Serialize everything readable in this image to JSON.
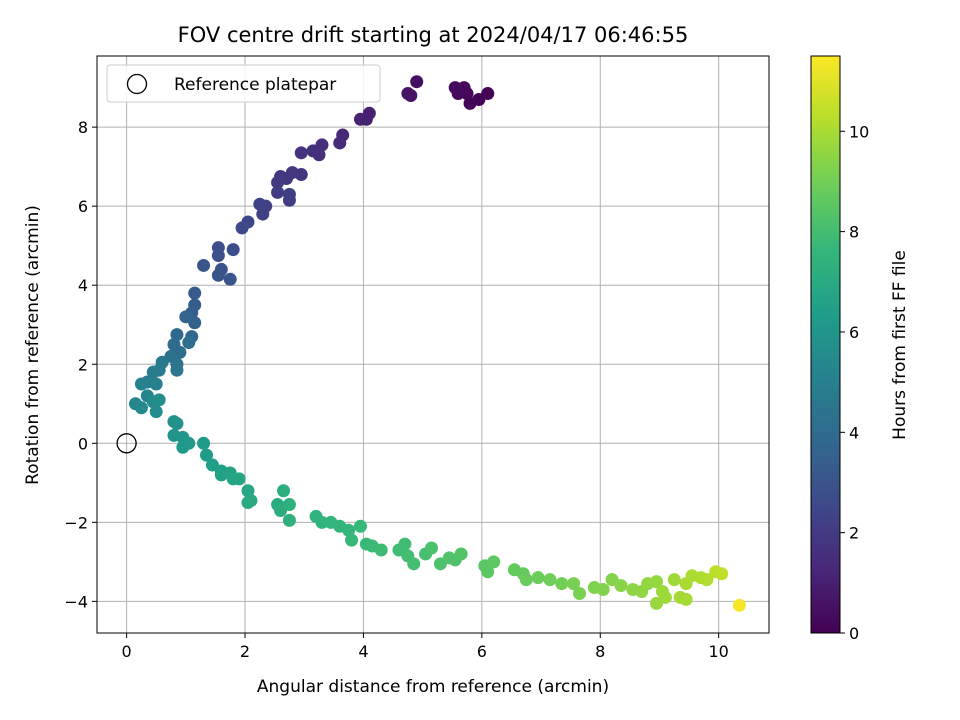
{
  "chart_data": {
    "type": "scatter",
    "title": "FOV centre drift starting at 2024/04/17 06:46:55",
    "xlabel": "Angular distance from reference (arcmin)",
    "ylabel": "Rotation from reference (arcmin)",
    "xlim": [
      -0.5,
      10.85
    ],
    "ylim": [
      -4.8,
      9.8
    ],
    "xticks": [
      0,
      2,
      4,
      6,
      8,
      10
    ],
    "yticks": [
      -4,
      -2,
      0,
      2,
      4,
      6,
      8
    ],
    "grid": true,
    "legend": {
      "placement": "top-left",
      "entries": [
        "Reference platepar"
      ]
    },
    "reference_point": {
      "x": 0,
      "y": 0,
      "marker": "open-circle"
    },
    "colorbar": {
      "label": "Hours from first FF file",
      "colormap": "viridis",
      "range": [
        0,
        11.5
      ],
      "ticks": [
        0,
        2,
        4,
        6,
        8,
        10
      ]
    },
    "colormap_stops": [
      "#440154",
      "#482878",
      "#3e4989",
      "#31688e",
      "#26828e",
      "#1f9e89",
      "#35b779",
      "#6ece58",
      "#b5de2b",
      "#fde725"
    ],
    "points": [
      {
        "x": 6.1,
        "y": 8.85,
        "h": 0.05
      },
      {
        "x": 5.95,
        "y": 8.7,
        "h": 0.1
      },
      {
        "x": 5.8,
        "y": 8.6,
        "h": 0.15
      },
      {
        "x": 5.75,
        "y": 8.85,
        "h": 0.2
      },
      {
        "x": 5.7,
        "y": 9.0,
        "h": 0.25
      },
      {
        "x": 5.6,
        "y": 8.85,
        "h": 0.3
      },
      {
        "x": 5.55,
        "y": 9.0,
        "h": 0.35
      },
      {
        "x": 4.9,
        "y": 9.15,
        "h": 0.5
      },
      {
        "x": 4.8,
        "y": 8.8,
        "h": 0.6
      },
      {
        "x": 4.75,
        "y": 8.85,
        "h": 0.65
      },
      {
        "x": 4.1,
        "y": 8.35,
        "h": 1.0
      },
      {
        "x": 4.05,
        "y": 8.2,
        "h": 1.05
      },
      {
        "x": 3.95,
        "y": 8.2,
        "h": 1.1
      },
      {
        "x": 3.65,
        "y": 7.8,
        "h": 1.3
      },
      {
        "x": 3.6,
        "y": 7.6,
        "h": 1.35
      },
      {
        "x": 3.3,
        "y": 7.55,
        "h": 1.5
      },
      {
        "x": 3.25,
        "y": 7.3,
        "h": 1.55
      },
      {
        "x": 3.15,
        "y": 7.4,
        "h": 1.6
      },
      {
        "x": 2.95,
        "y": 7.35,
        "h": 1.7
      },
      {
        "x": 2.95,
        "y": 6.8,
        "h": 1.8
      },
      {
        "x": 2.8,
        "y": 6.85,
        "h": 1.85
      },
      {
        "x": 2.7,
        "y": 6.7,
        "h": 1.9
      },
      {
        "x": 2.6,
        "y": 6.75,
        "h": 1.95
      },
      {
        "x": 2.55,
        "y": 6.6,
        "h": 2.0
      },
      {
        "x": 2.55,
        "y": 6.35,
        "h": 2.05
      },
      {
        "x": 2.75,
        "y": 6.15,
        "h": 2.1
      },
      {
        "x": 2.75,
        "y": 6.3,
        "h": 2.15
      },
      {
        "x": 2.35,
        "y": 6.0,
        "h": 2.2
      },
      {
        "x": 2.3,
        "y": 5.8,
        "h": 2.25
      },
      {
        "x": 2.25,
        "y": 6.05,
        "h": 2.3
      },
      {
        "x": 2.05,
        "y": 5.6,
        "h": 2.5
      },
      {
        "x": 1.95,
        "y": 5.45,
        "h": 2.55
      },
      {
        "x": 1.8,
        "y": 4.9,
        "h": 2.75
      },
      {
        "x": 1.55,
        "y": 4.95,
        "h": 2.8
      },
      {
        "x": 1.55,
        "y": 4.75,
        "h": 2.85
      },
      {
        "x": 1.6,
        "y": 4.4,
        "h": 2.95
      },
      {
        "x": 1.55,
        "y": 4.25,
        "h": 3.0
      },
      {
        "x": 1.75,
        "y": 4.15,
        "h": 3.05
      },
      {
        "x": 1.3,
        "y": 4.5,
        "h": 3.1
      },
      {
        "x": 1.15,
        "y": 3.8,
        "h": 3.3
      },
      {
        "x": 1.15,
        "y": 3.5,
        "h": 3.4
      },
      {
        "x": 1.1,
        "y": 3.3,
        "h": 3.5
      },
      {
        "x": 1.15,
        "y": 3.05,
        "h": 3.6
      },
      {
        "x": 1.0,
        "y": 3.2,
        "h": 3.65
      },
      {
        "x": 1.1,
        "y": 2.7,
        "h": 3.8
      },
      {
        "x": 0.85,
        "y": 2.75,
        "h": 3.9
      },
      {
        "x": 0.8,
        "y": 2.5,
        "h": 4.0
      },
      {
        "x": 0.9,
        "y": 2.3,
        "h": 4.1
      },
      {
        "x": 1.05,
        "y": 2.55,
        "h": 4.15
      },
      {
        "x": 0.75,
        "y": 2.2,
        "h": 4.3
      },
      {
        "x": 0.85,
        "y": 2.0,
        "h": 4.4
      },
      {
        "x": 0.85,
        "y": 1.85,
        "h": 4.5
      },
      {
        "x": 0.6,
        "y": 2.05,
        "h": 4.6
      },
      {
        "x": 0.55,
        "y": 1.85,
        "h": 4.7
      },
      {
        "x": 0.45,
        "y": 1.8,
        "h": 4.8
      },
      {
        "x": 0.35,
        "y": 1.55,
        "h": 4.9
      },
      {
        "x": 0.5,
        "y": 1.5,
        "h": 5.0
      },
      {
        "x": 0.25,
        "y": 1.5,
        "h": 5.1
      },
      {
        "x": 0.35,
        "y": 1.2,
        "h": 5.2
      },
      {
        "x": 0.15,
        "y": 1.0,
        "h": 5.3
      },
      {
        "x": 0.25,
        "y": 0.9,
        "h": 5.4
      },
      {
        "x": 0.45,
        "y": 1.05,
        "h": 5.5
      },
      {
        "x": 0.55,
        "y": 1.1,
        "h": 5.55
      },
      {
        "x": 0.5,
        "y": 0.8,
        "h": 5.6
      },
      {
        "x": 0.8,
        "y": 0.55,
        "h": 5.8
      },
      {
        "x": 0.85,
        "y": 0.5,
        "h": 5.85
      },
      {
        "x": 0.8,
        "y": 0.2,
        "h": 5.9
      },
      {
        "x": 0.95,
        "y": 0.15,
        "h": 6.0
      },
      {
        "x": 1.05,
        "y": 0.0,
        "h": 6.1
      },
      {
        "x": 0.95,
        "y": -0.1,
        "h": 6.15
      },
      {
        "x": 1.3,
        "y": 0.0,
        "h": 6.2
      },
      {
        "x": 1.35,
        "y": -0.3,
        "h": 6.3
      },
      {
        "x": 1.45,
        "y": -0.55,
        "h": 6.4
      },
      {
        "x": 1.6,
        "y": -0.7,
        "h": 6.5
      },
      {
        "x": 1.6,
        "y": -0.8,
        "h": 6.55
      },
      {
        "x": 1.75,
        "y": -0.75,
        "h": 6.6
      },
      {
        "x": 1.8,
        "y": -0.9,
        "h": 6.7
      },
      {
        "x": 1.9,
        "y": -0.9,
        "h": 6.75
      },
      {
        "x": 2.05,
        "y": -1.2,
        "h": 6.85
      },
      {
        "x": 2.1,
        "y": -1.45,
        "h": 6.9
      },
      {
        "x": 2.05,
        "y": -1.5,
        "h": 6.95
      },
      {
        "x": 2.55,
        "y": -1.55,
        "h": 7.1
      },
      {
        "x": 2.6,
        "y": -1.7,
        "h": 7.15
      },
      {
        "x": 2.65,
        "y": -1.2,
        "h": 7.2
      },
      {
        "x": 2.75,
        "y": -1.55,
        "h": 7.25
      },
      {
        "x": 2.75,
        "y": -1.95,
        "h": 7.3
      },
      {
        "x": 3.2,
        "y": -1.85,
        "h": 7.4
      },
      {
        "x": 3.3,
        "y": -2.0,
        "h": 7.45
      },
      {
        "x": 3.45,
        "y": -2.0,
        "h": 7.5
      },
      {
        "x": 3.6,
        "y": -2.1,
        "h": 7.55
      },
      {
        "x": 3.75,
        "y": -2.2,
        "h": 7.6
      },
      {
        "x": 3.8,
        "y": -2.45,
        "h": 7.65
      },
      {
        "x": 3.95,
        "y": -2.1,
        "h": 7.7
      },
      {
        "x": 4.05,
        "y": -2.55,
        "h": 7.75
      },
      {
        "x": 4.15,
        "y": -2.6,
        "h": 7.8
      },
      {
        "x": 4.3,
        "y": -2.7,
        "h": 7.85
      },
      {
        "x": 4.6,
        "y": -2.7,
        "h": 7.9
      },
      {
        "x": 4.7,
        "y": -2.55,
        "h": 7.95
      },
      {
        "x": 4.75,
        "y": -2.85,
        "h": 8.0
      },
      {
        "x": 4.85,
        "y": -3.05,
        "h": 8.05
      },
      {
        "x": 5.05,
        "y": -2.8,
        "h": 8.1
      },
      {
        "x": 5.15,
        "y": -2.65,
        "h": 8.15
      },
      {
        "x": 5.3,
        "y": -3.05,
        "h": 8.2
      },
      {
        "x": 5.45,
        "y": -2.9,
        "h": 8.25
      },
      {
        "x": 5.55,
        "y": -2.95,
        "h": 8.3
      },
      {
        "x": 5.65,
        "y": -2.8,
        "h": 8.35
      },
      {
        "x": 6.05,
        "y": -3.1,
        "h": 8.5
      },
      {
        "x": 6.1,
        "y": -3.25,
        "h": 8.55
      },
      {
        "x": 6.2,
        "y": -3.0,
        "h": 8.6
      },
      {
        "x": 6.55,
        "y": -3.2,
        "h": 8.7
      },
      {
        "x": 6.7,
        "y": -3.3,
        "h": 8.75
      },
      {
        "x": 6.75,
        "y": -3.45,
        "h": 8.8
      },
      {
        "x": 6.95,
        "y": -3.4,
        "h": 8.85
      },
      {
        "x": 7.15,
        "y": -3.45,
        "h": 8.95
      },
      {
        "x": 7.35,
        "y": -3.55,
        "h": 9.0
      },
      {
        "x": 7.55,
        "y": -3.55,
        "h": 9.1
      },
      {
        "x": 7.65,
        "y": -3.8,
        "h": 9.15
      },
      {
        "x": 7.9,
        "y": -3.65,
        "h": 9.25
      },
      {
        "x": 8.05,
        "y": -3.7,
        "h": 9.3
      },
      {
        "x": 8.2,
        "y": -3.45,
        "h": 9.35
      },
      {
        "x": 8.35,
        "y": -3.6,
        "h": 9.4
      },
      {
        "x": 8.55,
        "y": -3.7,
        "h": 9.5
      },
      {
        "x": 8.7,
        "y": -3.75,
        "h": 9.55
      },
      {
        "x": 8.8,
        "y": -3.55,
        "h": 9.6
      },
      {
        "x": 8.95,
        "y": -3.5,
        "h": 9.65
      },
      {
        "x": 8.95,
        "y": -4.05,
        "h": 9.7
      },
      {
        "x": 9.05,
        "y": -3.75,
        "h": 9.75
      },
      {
        "x": 9.1,
        "y": -3.9,
        "h": 9.8
      },
      {
        "x": 9.25,
        "y": -3.45,
        "h": 9.85
      },
      {
        "x": 9.35,
        "y": -3.9,
        "h": 9.9
      },
      {
        "x": 9.45,
        "y": -3.95,
        "h": 9.95
      },
      {
        "x": 9.45,
        "y": -3.55,
        "h": 10.0
      },
      {
        "x": 9.55,
        "y": -3.35,
        "h": 10.05
      },
      {
        "x": 9.7,
        "y": -3.4,
        "h": 10.1
      },
      {
        "x": 9.8,
        "y": -3.45,
        "h": 10.15
      },
      {
        "x": 9.95,
        "y": -3.25,
        "h": 10.3
      },
      {
        "x": 10.05,
        "y": -3.3,
        "h": 10.4
      },
      {
        "x": 10.35,
        "y": -4.1,
        "h": 11.4
      }
    ]
  }
}
